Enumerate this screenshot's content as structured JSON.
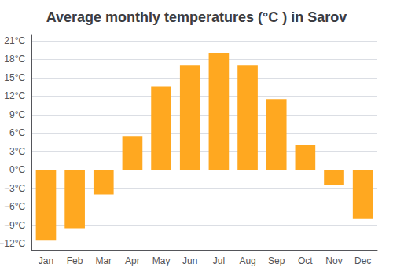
{
  "chart_data": {
    "type": "bar",
    "title": "Average monthly temperatures (°C ) in Sarov",
    "categories": [
      "Jan",
      "Feb",
      "Mar",
      "Apr",
      "May",
      "Jun",
      "Jul",
      "Aug",
      "Sep",
      "Oct",
      "Nov",
      "Dec"
    ],
    "values": [
      -11.5,
      -9.5,
      -4.0,
      5.5,
      13.5,
      17.0,
      19.0,
      17.0,
      11.5,
      4.0,
      -2.5,
      -8.0
    ],
    "color": "#FFA820",
    "ylim": [
      -13,
      22
    ],
    "yticks": [
      {
        "value": -12,
        "label": "−12°C"
      },
      {
        "value": -9,
        "label": "−9°C"
      },
      {
        "value": -6,
        "label": "−6°C"
      },
      {
        "value": -3,
        "label": "−3°C"
      },
      {
        "value": 0,
        "label": "0°C"
      },
      {
        "value": 3,
        "label": "3°C"
      },
      {
        "value": 6,
        "label": "6°C"
      },
      {
        "value": 9,
        "label": "9°C"
      },
      {
        "value": 12,
        "label": "12°C"
      },
      {
        "value": 15,
        "label": "15°C"
      },
      {
        "value": 18,
        "label": "18°C"
      },
      {
        "value": 21,
        "label": "21°C"
      }
    ],
    "grid": true
  }
}
